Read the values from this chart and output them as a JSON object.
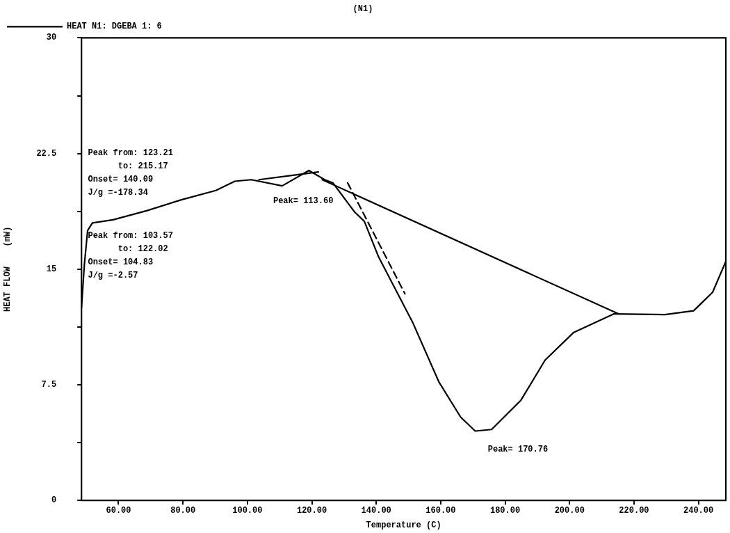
{
  "chart_data": {
    "type": "line",
    "title": "(N1)",
    "xlabel": "Temperature (C)",
    "ylabel": "HEAT FLOW    (mW)",
    "xlim": [
      48.5,
      248.5
    ],
    "ylim": [
      0,
      30
    ],
    "xticks": [
      {
        "value": 60,
        "label": "60.00"
      },
      {
        "value": 80,
        "label": "80.00"
      },
      {
        "value": 100,
        "label": "100.00"
      },
      {
        "value": 120,
        "label": "120.00"
      },
      {
        "value": 140,
        "label": "140.00"
      },
      {
        "value": 160,
        "label": "160.00"
      },
      {
        "value": 180,
        "label": "180.00"
      },
      {
        "value": 200,
        "label": "200.00"
      },
      {
        "value": 220,
        "label": "220.00"
      },
      {
        "value": 240,
        "label": "240.00"
      }
    ],
    "yticks": [
      0,
      {
        "value": 3.75,
        "label": null
      },
      7.5,
      {
        "value": 11.25,
        "label": null
      },
      15,
      {
        "value": 18.75,
        "label": null
      },
      22.5,
      {
        "value": 26.25,
        "label": null
      },
      30
    ],
    "grid": false,
    "legend": "top left",
    "marker": "none",
    "line_style": "solid",
    "series": [
      {
        "name": "HEAT N1: DGEBA 1: 6",
        "color": "#000000",
        "x": [
          48.5,
          49.4,
          50.4,
          51.9,
          58.3,
          68.9,
          79.5,
          90.2,
          96.1,
          101.2,
          110.8,
          119.1,
          124.0,
          126.5,
          133.3,
          136.3,
          140.7,
          151.4,
          159.4,
          166.2,
          170.7,
          175.8,
          184.9,
          192.4,
          201.3,
          213.8,
          229.6,
          238.5,
          244.4,
          248.5
        ],
        "values": [
          12.5,
          15.3,
          17.5,
          18.0,
          18.2,
          18.8,
          19.5,
          20.1,
          20.7,
          20.8,
          20.4,
          21.4,
          20.8,
          20.6,
          18.7,
          18.1,
          15.8,
          11.5,
          7.7,
          5.4,
          4.5,
          4.6,
          6.5,
          9.1,
          10.9,
          12.1,
          12.05,
          12.3,
          13.5,
          15.5
        ]
      },
      {
        "color": "#000000",
        "x": [
          103.57,
          122.02
        ],
        "values": [
          20.8,
          21.3
        ]
      },
      {
        "color": "#000000",
        "x": [
          123.21,
          215.17
        ],
        "values": [
          20.8,
          12.1
        ]
      },
      {
        "color": "#000000",
        "line_style": "dashed",
        "x": [
          131.1,
          148.9
        ],
        "values": [
          20.6,
          13.4
        ]
      }
    ],
    "annotations": [
      "Peak from: 123.21\n      to: 215.17\nOnset= 140.09\nJ/g =-178.34",
      "Peak from: 103.57\n      to: 122.02\nOnset= 104.83\nJ/g =-2.57",
      "Peak= 113.60",
      {
        "text": "Peak= 170.76",
        "x": 170.76,
        "y": 4.5
      }
    ]
  }
}
